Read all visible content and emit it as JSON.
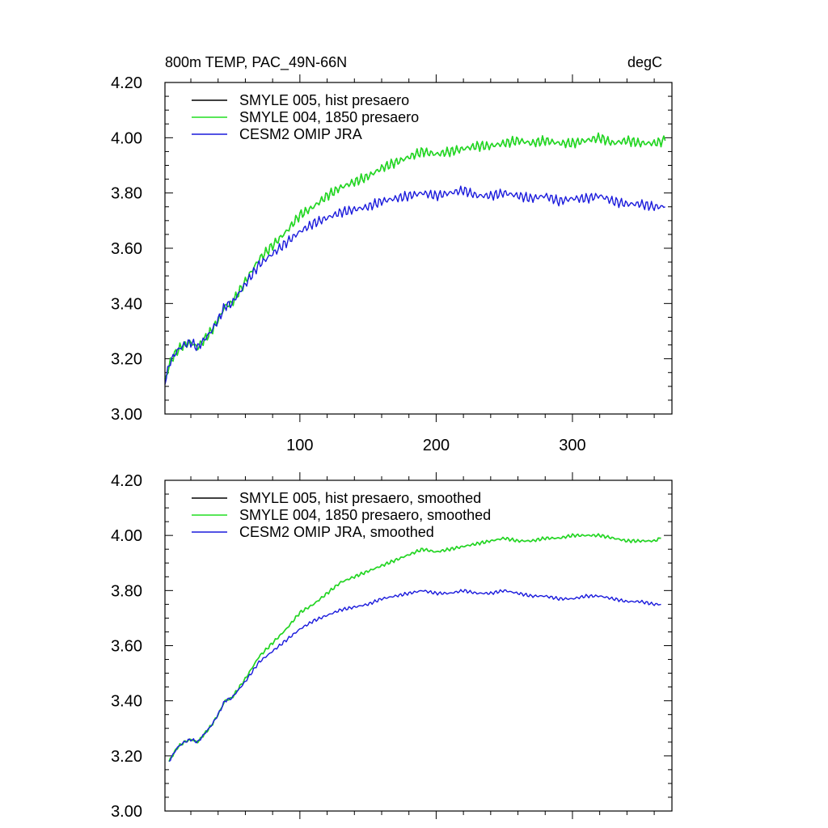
{
  "figure": {
    "title_left": "800m TEMP, PAC_49N-66N",
    "title_right": "degC"
  },
  "chart_data": [
    {
      "type": "line",
      "xlim": [
        1,
        373
      ],
      "ylim": [
        3.0,
        4.2
      ],
      "x_ticks": [
        100,
        200,
        300
      ],
      "x_tick_labels": [
        "100",
        "200",
        "300"
      ],
      "y_ticks": [
        3.0,
        3.2,
        3.4,
        3.6,
        3.8,
        4.0,
        4.2
      ],
      "y_tick_labels": [
        "3.00",
        "3.20",
        "3.40",
        "3.60",
        "3.80",
        "4.00",
        "4.20"
      ],
      "legend_position": "top-left",
      "series": [
        {
          "name": "SMYLE 005, hist presaero",
          "color": "#000000",
          "x": [
            1,
            5,
            10,
            15,
            20,
            25,
            30,
            35,
            40,
            45,
            50,
            60,
            70,
            80,
            90,
            100,
            110,
            120,
            130,
            140,
            150,
            160,
            170,
            180,
            190,
            200,
            210,
            220,
            230,
            240,
            250,
            260,
            270,
            280,
            290,
            300,
            310,
            320,
            330,
            340,
            350,
            360,
            368
          ],
          "y": [
            3.12,
            3.19,
            3.23,
            3.25,
            3.26,
            3.24,
            3.27,
            3.3,
            3.34,
            3.39,
            3.4,
            3.48,
            3.56,
            3.61,
            3.66,
            3.72,
            3.75,
            3.79,
            3.82,
            3.84,
            3.86,
            3.89,
            3.91,
            3.93,
            3.95,
            3.94,
            3.95,
            3.96,
            3.97,
            3.97,
            3.98,
            3.99,
            3.98,
            3.99,
            3.98,
            3.98,
            3.99,
            4.0,
            3.98,
            3.99,
            3.98,
            3.98,
            3.99
          ]
        },
        {
          "name": "SMYLE 004, 1850 presaero",
          "color": "#22dd22",
          "x": [
            1,
            5,
            10,
            15,
            20,
            25,
            30,
            35,
            40,
            45,
            50,
            60,
            70,
            80,
            90,
            100,
            110,
            120,
            130,
            140,
            150,
            160,
            170,
            180,
            190,
            200,
            210,
            220,
            230,
            240,
            250,
            260,
            270,
            280,
            290,
            300,
            310,
            320,
            330,
            340,
            350,
            360,
            368
          ],
          "y": [
            3.12,
            3.19,
            3.23,
            3.25,
            3.26,
            3.24,
            3.27,
            3.3,
            3.34,
            3.39,
            3.4,
            3.48,
            3.56,
            3.61,
            3.66,
            3.72,
            3.75,
            3.79,
            3.82,
            3.84,
            3.86,
            3.89,
            3.91,
            3.93,
            3.95,
            3.94,
            3.95,
            3.96,
            3.97,
            3.97,
            3.98,
            3.99,
            3.98,
            3.99,
            3.98,
            3.98,
            3.99,
            4.0,
            3.98,
            3.99,
            3.98,
            3.98,
            3.99
          ]
        },
        {
          "name": "CESM2 OMIP JRA",
          "color": "#1a1adc",
          "x": [
            1,
            5,
            10,
            15,
            20,
            25,
            30,
            35,
            40,
            45,
            50,
            60,
            70,
            80,
            90,
            100,
            110,
            120,
            130,
            140,
            150,
            160,
            170,
            180,
            190,
            200,
            210,
            220,
            230,
            240,
            250,
            260,
            270,
            280,
            290,
            300,
            310,
            320,
            330,
            340,
            350,
            360,
            368
          ],
          "y": [
            3.12,
            3.19,
            3.23,
            3.25,
            3.26,
            3.24,
            3.27,
            3.3,
            3.34,
            3.39,
            3.4,
            3.47,
            3.54,
            3.58,
            3.62,
            3.66,
            3.69,
            3.71,
            3.73,
            3.74,
            3.75,
            3.77,
            3.78,
            3.79,
            3.8,
            3.79,
            3.8,
            3.81,
            3.79,
            3.79,
            3.8,
            3.79,
            3.78,
            3.79,
            3.77,
            3.78,
            3.78,
            3.79,
            3.77,
            3.76,
            3.76,
            3.75,
            3.75
          ]
        }
      ]
    },
    {
      "type": "line",
      "xlim": [
        1,
        373
      ],
      "ylim": [
        3.0,
        4.2
      ],
      "x_ticks": [
        100,
        200,
        300
      ],
      "x_tick_labels": [],
      "y_ticks": [
        3.0,
        3.2,
        3.4,
        3.6,
        3.8,
        4.0,
        4.2
      ],
      "y_tick_labels": [
        "3.00",
        "3.20",
        "3.40",
        "3.60",
        "3.80",
        "4.00",
        "4.20"
      ],
      "legend_position": "top-left",
      "series": [
        {
          "name": "SMYLE 005, hist presaero, smoothed",
          "color": "#000000",
          "x": [
            4,
            10,
            15,
            20,
            25,
            30,
            35,
            40,
            45,
            50,
            60,
            70,
            80,
            90,
            100,
            110,
            120,
            130,
            140,
            150,
            160,
            170,
            180,
            190,
            200,
            210,
            220,
            230,
            240,
            250,
            260,
            270,
            280,
            290,
            300,
            310,
            320,
            330,
            340,
            350,
            360,
            365
          ],
          "y": [
            3.18,
            3.23,
            3.25,
            3.26,
            3.25,
            3.28,
            3.31,
            3.35,
            3.4,
            3.41,
            3.48,
            3.56,
            3.61,
            3.66,
            3.72,
            3.75,
            3.79,
            3.83,
            3.85,
            3.87,
            3.89,
            3.91,
            3.93,
            3.95,
            3.94,
            3.95,
            3.96,
            3.97,
            3.98,
            3.99,
            3.98,
            3.98,
            3.99,
            3.99,
            4.0,
            4.0,
            4.0,
            3.99,
            3.98,
            3.98,
            3.98,
            3.99
          ]
        },
        {
          "name": "SMYLE 004, 1850 presaero, smoothed",
          "color": "#22dd22",
          "x": [
            4,
            10,
            15,
            20,
            25,
            30,
            35,
            40,
            45,
            50,
            60,
            70,
            80,
            90,
            100,
            110,
            120,
            130,
            140,
            150,
            160,
            170,
            180,
            190,
            200,
            210,
            220,
            230,
            240,
            250,
            260,
            270,
            280,
            290,
            300,
            310,
            320,
            330,
            340,
            350,
            360,
            365
          ],
          "y": [
            3.18,
            3.23,
            3.25,
            3.26,
            3.25,
            3.28,
            3.31,
            3.35,
            3.4,
            3.41,
            3.48,
            3.56,
            3.61,
            3.66,
            3.72,
            3.75,
            3.79,
            3.83,
            3.85,
            3.87,
            3.89,
            3.91,
            3.93,
            3.95,
            3.94,
            3.95,
            3.96,
            3.97,
            3.98,
            3.99,
            3.98,
            3.98,
            3.99,
            3.99,
            4.0,
            4.0,
            4.0,
            3.99,
            3.98,
            3.98,
            3.98,
            3.99
          ]
        },
        {
          "name": "CESM2 OMIP JRA, smoothed",
          "color": "#1a1adc",
          "x": [
            4,
            10,
            15,
            20,
            25,
            30,
            35,
            40,
            45,
            50,
            60,
            70,
            80,
            90,
            100,
            110,
            120,
            130,
            140,
            150,
            160,
            170,
            180,
            190,
            200,
            210,
            220,
            230,
            240,
            250,
            260,
            270,
            280,
            290,
            300,
            310,
            320,
            330,
            340,
            350,
            360,
            365
          ],
          "y": [
            3.18,
            3.23,
            3.25,
            3.26,
            3.25,
            3.28,
            3.31,
            3.35,
            3.4,
            3.41,
            3.47,
            3.54,
            3.58,
            3.62,
            3.66,
            3.69,
            3.71,
            3.73,
            3.74,
            3.75,
            3.77,
            3.78,
            3.79,
            3.8,
            3.79,
            3.79,
            3.8,
            3.79,
            3.79,
            3.8,
            3.79,
            3.78,
            3.78,
            3.77,
            3.77,
            3.78,
            3.78,
            3.77,
            3.76,
            3.76,
            3.75,
            3.75
          ]
        }
      ]
    }
  ]
}
